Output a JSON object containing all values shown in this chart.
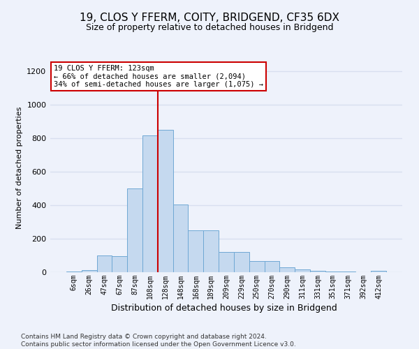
{
  "title": "19, CLOS Y FFERM, COITY, BRIDGEND, CF35 6DX",
  "subtitle": "Size of property relative to detached houses in Bridgend",
  "xlabel": "Distribution of detached houses by size in Bridgend",
  "ylabel": "Number of detached properties",
  "footer_line1": "Contains HM Land Registry data © Crown copyright and database right 2024.",
  "footer_line2": "Contains public sector information licensed under the Open Government Licence v3.0.",
  "bar_labels": [
    "6sqm",
    "26sqm",
    "47sqm",
    "67sqm",
    "87sqm",
    "108sqm",
    "128sqm",
    "148sqm",
    "168sqm",
    "189sqm",
    "209sqm",
    "229sqm",
    "250sqm",
    "270sqm",
    "290sqm",
    "311sqm",
    "331sqm",
    "351sqm",
    "371sqm",
    "392sqm",
    "412sqm"
  ],
  "bar_values": [
    5,
    12,
    100,
    95,
    500,
    815,
    850,
    405,
    250,
    250,
    120,
    120,
    65,
    65,
    28,
    18,
    10,
    5,
    3,
    2,
    8
  ],
  "bar_color": "#c5d9ef",
  "bar_edge_color": "#6fa8d4",
  "ylim": [
    0,
    1250
  ],
  "yticks": [
    0,
    200,
    400,
    600,
    800,
    1000,
    1200
  ],
  "property_label": "19 CLOS Y FFERM: 123sqm",
  "annotation_line1": "← 66% of detached houses are smaller (2,094)",
  "annotation_line2": "34% of semi-detached houses are larger (1,075) →",
  "vline_color": "#cc0000",
  "annotation_box_color": "#ffffff",
  "annotation_box_edge": "#cc0000",
  "background_color": "#eef2fb",
  "grid_color": "#d8dff0"
}
